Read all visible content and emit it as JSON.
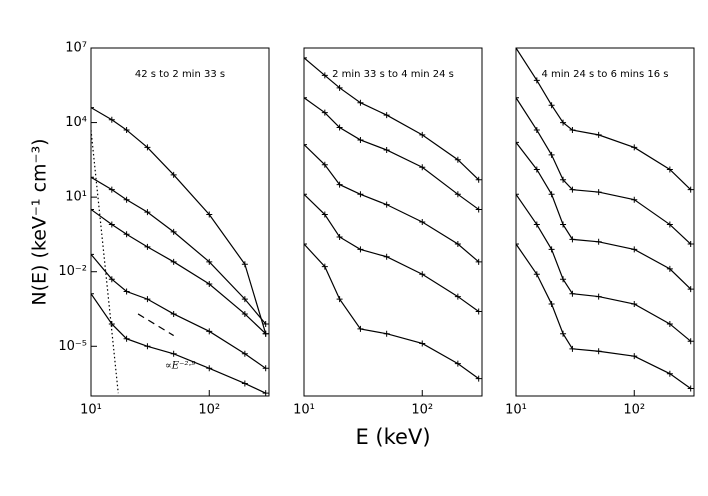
{
  "chart_data": [
    {
      "type": "line",
      "title": "42 s to 2 min 33 s",
      "ylabel": "N(E) (keV⁻¹ cm⁻³)",
      "color": "#000000",
      "log_x": true,
      "log_y": true,
      "xlim": [
        10,
        320
      ],
      "ylim": [
        1e-07,
        10000000.0
      ],
      "xticks": [
        {
          "value": 10,
          "label": "10¹"
        },
        {
          "value": 100,
          "label": "10²"
        }
      ],
      "yticks": [
        {
          "value": 10000000.0,
          "label": "10⁷"
        },
        {
          "value": 10000.0,
          "label": "10⁴"
        },
        {
          "value": 10,
          "label": "10¹"
        },
        {
          "value": 0.01,
          "label": "10⁻²"
        },
        {
          "value": 1e-05,
          "label": "10⁻⁵"
        }
      ],
      "x": [
        10,
        15,
        20,
        30,
        50,
        100,
        200,
        300
      ],
      "series": [
        {
          "values": [
            40000.0,
            13000.0,
            5000.0,
            1000.0,
            79,
            2.0,
            0.02,
            3.2e-05
          ]
        },
        {
          "values": [
            63,
            20,
            7.9,
            2.5,
            0.4,
            0.025,
            0.00079,
            7.9e-05
          ]
        },
        {
          "values": [
            3.2,
            0.79,
            0.32,
            0.1,
            0.025,
            0.0032,
            0.0002,
            3.2e-05
          ]
        },
        {
          "values": [
            0.05,
            0.005,
            0.0016,
            0.00079,
            0.0002,
            4e-05,
            5e-06,
            1.3e-06
          ]
        },
        {
          "values": [
            0.0013,
            7.9e-05,
            2e-05,
            1e-05,
            5e-06,
            1.3e-06,
            3.2e-07,
            1.3e-07
          ]
        }
      ],
      "lines": [
        {
          "style": "dotted",
          "x": [
            10,
            17
          ],
          "values": [
            5000.0,
            1.3e-07
          ]
        },
        {
          "style": "dashed",
          "x": [
            25,
            50
          ],
          "values": [
            0.0002,
            2.7e-05
          ]
        }
      ],
      "annotation": "∝E⁻²·⁹"
    },
    {
      "type": "line",
      "title": "2 min 33 s to 4 min 24 s",
      "xlabel": "E (keV)",
      "color": "#000000",
      "log_x": true,
      "log_y": true,
      "xlim": [
        10,
        320
      ],
      "ylim": [
        1e-07,
        10000000.0
      ],
      "xticks": [
        {
          "value": 10,
          "label": "10¹"
        },
        {
          "value": 100,
          "label": "10²"
        }
      ],
      "x": [
        10,
        15,
        20,
        30,
        50,
        100,
        200,
        300
      ],
      "series": [
        {
          "values": [
            4000000.0,
            790000.0,
            250000.0,
            63000.0,
            20000.0,
            3200.0,
            320,
            50
          ]
        },
        {
          "values": [
            100000.0,
            25000.0,
            6300.0,
            2000.0,
            790,
            160,
            13,
            3.2
          ]
        },
        {
          "values": [
            1300.0,
            200,
            32,
            13,
            5.0,
            1,
            0.13,
            0.025
          ]
        },
        {
          "values": [
            13,
            2.0,
            0.25,
            0.079,
            0.04,
            0.0079,
            0.001,
            0.00025
          ]
        },
        {
          "values": [
            0.13,
            0.016,
            0.00079,
            5e-05,
            3.2e-05,
            1.3e-05,
            2e-06,
            5e-07
          ]
        }
      ]
    },
    {
      "type": "line",
      "title": "4 min 24 s to 6 mins 16 s",
      "color": "#000000",
      "log_x": true,
      "log_y": true,
      "xlim": [
        10,
        320
      ],
      "ylim": [
        1e-07,
        10000000.0
      ],
      "xticks": [
        {
          "value": 10,
          "label": "10¹"
        },
        {
          "value": 100,
          "label": "10²"
        }
      ],
      "x": [
        10,
        15,
        20,
        25,
        30,
        50,
        100,
        200,
        300
      ],
      "series": [
        {
          "values": [
            10000000.0,
            500000.0,
            50000.0,
            10000.0,
            5000.0,
            3200.0,
            1000.0,
            130,
            20
          ]
        },
        {
          "values": [
            100000.0,
            5000.0,
            500,
            50,
            20,
            16,
            7.9,
            0.79,
            0.13
          ]
        },
        {
          "values": [
            1600.0,
            130,
            13,
            0.79,
            0.2,
            0.16,
            0.079,
            0.013,
            0.002
          ]
        },
        {
          "values": [
            13,
            0.79,
            0.079,
            0.005,
            0.0013,
            0.001,
            0.0005,
            7.9e-05,
            1.6e-05
          ]
        },
        {
          "values": [
            0.13,
            0.0079,
            0.0005,
            3.2e-05,
            7.9e-06,
            6.3e-06,
            4e-06,
            7.9e-07,
            2e-07
          ]
        }
      ]
    }
  ]
}
